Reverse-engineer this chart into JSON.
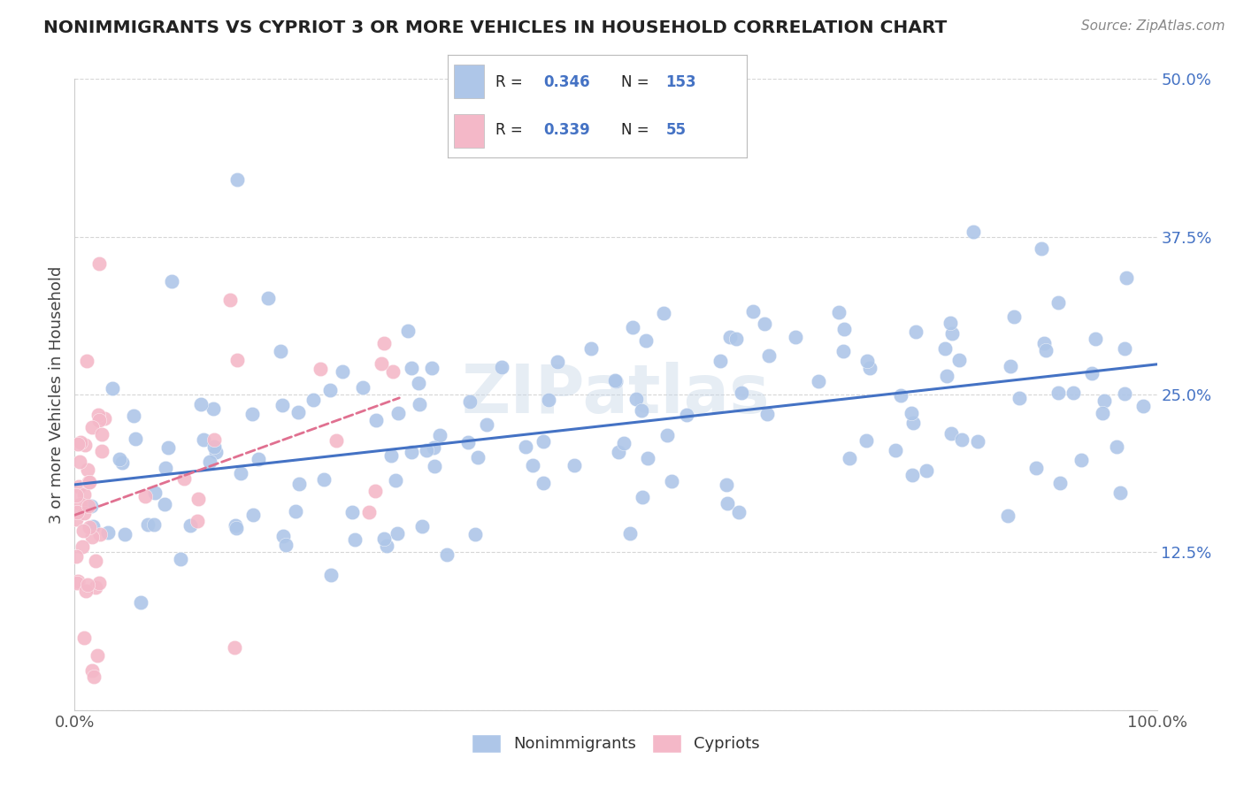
{
  "title": "NONIMMIGRANTS VS CYPRIOT 3 OR MORE VEHICLES IN HOUSEHOLD CORRELATION CHART",
  "source": "Source: ZipAtlas.com",
  "ylabel": "3 or more Vehicles in Household",
  "xmin": 0.0,
  "xmax": 100.0,
  "ymin": 0.0,
  "ymax": 50.0,
  "blue_R": 0.346,
  "blue_N": 153,
  "pink_R": 0.339,
  "pink_N": 55,
  "blue_color": "#aec6e8",
  "pink_color": "#f4b8c8",
  "blue_edge_color": "#7aadd4",
  "pink_edge_color": "#e890a8",
  "blue_line_color": "#4472c4",
  "pink_line_color": "#e07090",
  "legend_label_blue": "Nonimmigrants",
  "legend_label_pink": "Cypriots",
  "background_color": "#ffffff",
  "grid_color": "#cccccc",
  "watermark": "ZIPatlas",
  "title_color": "#222222",
  "source_color": "#888888",
  "ylabel_color": "#444444",
  "tick_color": "#4472c4",
  "xtick_color": "#555555"
}
